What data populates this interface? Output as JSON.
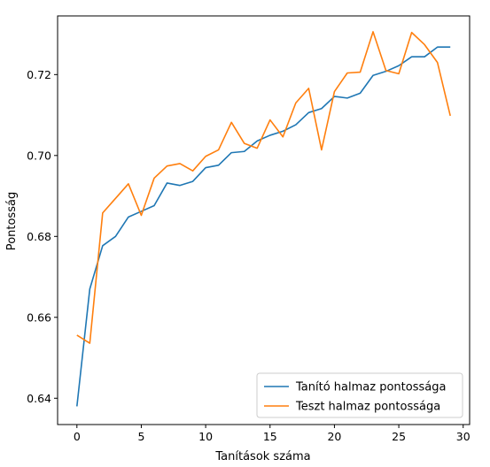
{
  "chart_data": {
    "type": "line",
    "xlabel": "Tanítások száma",
    "ylabel": "Pontosság",
    "xlim": [
      -1.5,
      30.5
    ],
    "ylim": [
      0.6335,
      0.7345
    ],
    "xticks": [
      0,
      5,
      10,
      15,
      20,
      25,
      30
    ],
    "yticks": [
      0.64,
      0.66,
      0.68,
      0.7,
      0.72
    ],
    "ytick_labels": [
      "0.64",
      "0.66",
      "0.68",
      "0.70",
      "0.72"
    ],
    "legend_position": "lower-right",
    "grid": false,
    "x": [
      0,
      1,
      2,
      3,
      4,
      5,
      6,
      7,
      8,
      9,
      10,
      11,
      12,
      13,
      14,
      15,
      16,
      17,
      18,
      19,
      20,
      21,
      22,
      23,
      24,
      25,
      26,
      27,
      28,
      29
    ],
    "series": [
      {
        "name": "Tanító halmaz pontossága",
        "color": "#1f77b4",
        "values": [
          0.638,
          0.667,
          0.6777,
          0.68,
          0.6848,
          0.6862,
          0.6876,
          0.6932,
          0.6926,
          0.6936,
          0.697,
          0.6976,
          0.7007,
          0.701,
          0.7036,
          0.705,
          0.706,
          0.7076,
          0.7106,
          0.7116,
          0.7146,
          0.7142,
          0.7154,
          0.7198,
          0.7208,
          0.7222,
          0.7244,
          0.7244,
          0.7268,
          0.7268
        ]
      },
      {
        "name": "Teszt halmaz pontossága",
        "color": "#ff7f0e",
        "values": [
          0.6556,
          0.6536,
          0.6858,
          0.6894,
          0.693,
          0.6852,
          0.6944,
          0.6974,
          0.698,
          0.6962,
          0.6998,
          0.7014,
          0.7082,
          0.703,
          0.7018,
          0.7088,
          0.7046,
          0.713,
          0.7166,
          0.7014,
          0.7158,
          0.7204,
          0.7206,
          0.7306,
          0.721,
          0.7202,
          0.7304,
          0.7274,
          0.723,
          0.7098
        ]
      }
    ]
  }
}
